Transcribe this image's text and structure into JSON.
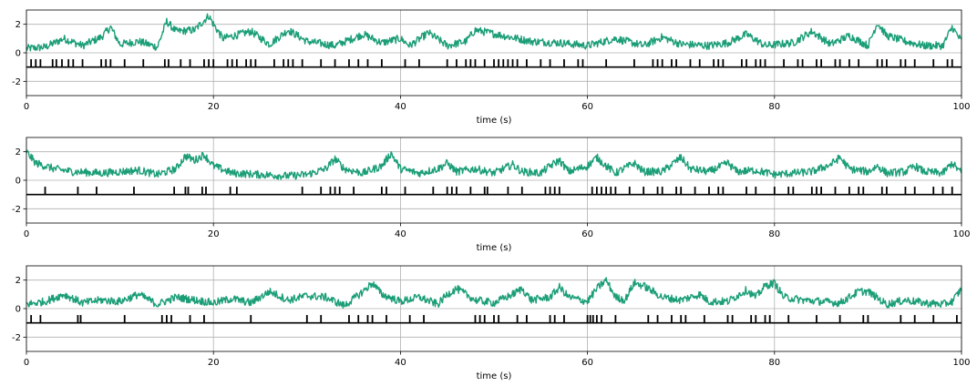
{
  "chart_data": [
    {
      "type": "line",
      "xlabel": "time (s)",
      "ylabel": "",
      "xlim": [
        0,
        100
      ],
      "ylim": [
        -3,
        3
      ],
      "xticks": [
        "0",
        "20",
        "40",
        "60",
        "80",
        "100"
      ],
      "yticks": [
        "-2",
        "0",
        "2"
      ],
      "grid": true,
      "trace_color": "#1b9e77",
      "spike_color": "#000000",
      "spike_baseline": -1,
      "trace_anchors": [
        [
          0,
          0.3
        ],
        [
          2,
          0.4
        ],
        [
          4,
          1.0
        ],
        [
          6,
          0.5
        ],
        [
          8,
          1.1
        ],
        [
          9,
          1.8
        ],
        [
          10,
          0.6
        ],
        [
          12,
          0.8
        ],
        [
          14,
          0.4
        ],
        [
          15,
          2.2
        ],
        [
          16,
          1.5
        ],
        [
          18,
          1.6
        ],
        [
          19.5,
          2.6
        ],
        [
          20,
          2.0
        ],
        [
          21,
          1.0
        ],
        [
          24,
          1.5
        ],
        [
          26,
          0.6
        ],
        [
          28,
          1.6
        ],
        [
          30,
          0.8
        ],
        [
          33,
          0.5
        ],
        [
          36,
          1.3
        ],
        [
          38,
          0.7
        ],
        [
          40,
          1.0
        ],
        [
          41,
          0.5
        ],
        [
          43,
          1.4
        ],
        [
          45,
          0.5
        ],
        [
          47,
          0.8
        ],
        [
          48,
          1.6
        ],
        [
          51,
          1.2
        ],
        [
          54,
          0.8
        ],
        [
          57,
          0.7
        ],
        [
          60,
          0.5
        ],
        [
          63,
          1.0
        ],
        [
          66,
          0.5
        ],
        [
          68,
          1.1
        ],
        [
          70,
          0.6
        ],
        [
          73,
          0.5
        ],
        [
          75,
          0.7
        ],
        [
          77,
          1.3
        ],
        [
          79,
          0.5
        ],
        [
          82,
          0.7
        ],
        [
          84,
          1.5
        ],
        [
          86,
          0.6
        ],
        [
          88,
          1.2
        ],
        [
          90,
          0.5
        ],
        [
          91,
          2.1
        ],
        [
          92,
          1.2
        ],
        [
          94,
          0.8
        ],
        [
          96,
          0.5
        ],
        [
          98,
          0.5
        ],
        [
          99,
          1.8
        ],
        [
          100,
          0.8
        ]
      ],
      "spike_times": [
        0.5,
        1,
        1.5,
        2.8,
        3.2,
        3.8,
        4.5,
        5,
        6,
        8,
        8.5,
        9,
        10.5,
        12.5,
        14.8,
        15.2,
        16.5,
        17.5,
        19,
        19.5,
        20,
        21.5,
        22,
        22.5,
        23.5,
        24,
        24.5,
        26.5,
        27.5,
        28,
        28.5,
        29.5,
        31.5,
        33,
        34.5,
        35.5,
        36.5,
        38,
        40.5,
        42,
        45,
        46,
        47,
        47.5,
        48,
        49,
        50,
        50.5,
        51,
        51.5,
        52,
        52.5,
        53.5,
        55,
        56,
        57.5,
        59,
        59.5,
        62,
        65,
        67,
        67.5,
        68,
        69,
        69.5,
        71,
        72,
        73.5,
        74,
        74.5,
        76.5,
        77,
        78,
        78.5,
        79,
        81,
        82.5,
        83,
        84.5,
        85,
        86.5,
        87,
        88,
        89,
        91,
        91.5,
        92,
        93.5,
        94,
        95,
        97,
        98.5,
        99
      ]
    },
    {
      "type": "line",
      "xlabel": "time (s)",
      "ylabel": "",
      "xlim": [
        0,
        100
      ],
      "ylim": [
        -3,
        3
      ],
      "xticks": [
        "0",
        "20",
        "40",
        "60",
        "80",
        "100"
      ],
      "yticks": [
        "-2",
        "0",
        "2"
      ],
      "grid": true,
      "trace_color": "#1b9e77",
      "spike_color": "#000000",
      "spike_baseline": -1,
      "trace_anchors": [
        [
          0,
          2.0
        ],
        [
          1,
          1.2
        ],
        [
          3,
          0.8
        ],
        [
          5,
          0.6
        ],
        [
          8,
          0.5
        ],
        [
          10,
          0.6
        ],
        [
          12,
          0.7
        ],
        [
          14,
          0.4
        ],
        [
          16,
          0.8
        ],
        [
          17,
          1.7
        ],
        [
          18,
          1.4
        ],
        [
          19,
          1.8
        ],
        [
          20,
          1.0
        ],
        [
          22,
          0.5
        ],
        [
          25,
          0.4
        ],
        [
          28,
          0.3
        ],
        [
          30,
          0.4
        ],
        [
          32,
          0.8
        ],
        [
          33,
          1.5
        ],
        [
          34,
          0.8
        ],
        [
          36,
          0.5
        ],
        [
          38,
          1.0
        ],
        [
          39,
          1.9
        ],
        [
          40,
          0.8
        ],
        [
          42,
          0.5
        ],
        [
          44,
          0.8
        ],
        [
          45,
          1.2
        ],
        [
          46,
          0.6
        ],
        [
          48,
          0.8
        ],
        [
          50,
          0.5
        ],
        [
          52,
          1.1
        ],
        [
          53,
          0.6
        ],
        [
          55,
          0.5
        ],
        [
          56,
          1.0
        ],
        [
          57,
          1.4
        ],
        [
          58,
          0.6
        ],
        [
          60,
          1.0
        ],
        [
          61,
          1.6
        ],
        [
          62,
          1.0
        ],
        [
          63,
          0.5
        ],
        [
          65,
          1.2
        ],
        [
          66,
          0.6
        ],
        [
          68,
          0.6
        ],
        [
          69,
          1.1
        ],
        [
          70,
          1.6
        ],
        [
          71,
          0.8
        ],
        [
          73,
          0.6
        ],
        [
          75,
          1.2
        ],
        [
          76,
          0.6
        ],
        [
          78,
          0.7
        ],
        [
          80,
          0.4
        ],
        [
          82,
          0.5
        ],
        [
          84,
          0.6
        ],
        [
          86,
          1.1
        ],
        [
          87,
          1.6
        ],
        [
          88,
          0.8
        ],
        [
          90,
          0.6
        ],
        [
          91,
          1.0
        ],
        [
          92,
          0.5
        ],
        [
          94,
          0.6
        ],
        [
          95,
          1.0
        ],
        [
          96,
          0.6
        ],
        [
          98,
          0.5
        ],
        [
          99,
          1.2
        ],
        [
          100,
          0.5
        ]
      ],
      "spike_times": [
        2,
        5.5,
        7.5,
        11.5,
        15.8,
        17,
        17.3,
        18.8,
        19.2,
        21.8,
        22.5,
        29.5,
        31.5,
        32.5,
        33,
        33.5,
        35,
        38,
        38.5,
        40.5,
        43.5,
        45,
        45.5,
        46,
        47.5,
        49,
        49.3,
        51.5,
        53,
        55.5,
        56,
        56.5,
        57,
        60.5,
        61,
        61.5,
        62,
        62.5,
        63,
        64.5,
        66,
        67.5,
        68,
        69.5,
        70,
        71.5,
        73,
        74,
        74.5,
        77,
        78,
        80,
        81.5,
        82,
        84,
        84.5,
        85,
        86.5,
        88,
        89,
        89.5,
        91.5,
        92,
        94,
        95,
        97,
        98,
        99
      ]
    },
    {
      "type": "line",
      "xlabel": "time (s)",
      "ylabel": "",
      "xlim": [
        0,
        100
      ],
      "ylim": [
        -3,
        3
      ],
      "xticks": [
        "0",
        "20",
        "40",
        "60",
        "80",
        "100"
      ],
      "yticks": [
        "-2",
        "0",
        "2"
      ],
      "grid": true,
      "trace_color": "#1b9e77",
      "spike_color": "#000000",
      "spike_baseline": -1,
      "trace_anchors": [
        [
          0,
          0.3
        ],
        [
          2,
          0.5
        ],
        [
          4,
          1.0
        ],
        [
          6,
          0.4
        ],
        [
          8,
          0.6
        ],
        [
          10,
          0.5
        ],
        [
          12,
          1.0
        ],
        [
          14,
          0.3
        ],
        [
          16,
          0.8
        ],
        [
          18,
          0.6
        ],
        [
          20,
          0.4
        ],
        [
          22,
          0.7
        ],
        [
          24,
          0.4
        ],
        [
          25,
          0.8
        ],
        [
          26,
          1.2
        ],
        [
          28,
          0.6
        ],
        [
          30,
          0.9
        ],
        [
          32,
          0.8
        ],
        [
          34,
          0.2
        ],
        [
          36,
          1.2
        ],
        [
          37,
          1.8
        ],
        [
          38,
          1.0
        ],
        [
          40,
          0.5
        ],
        [
          42,
          0.8
        ],
        [
          44,
          0.3
        ],
        [
          45,
          1.0
        ],
        [
          46,
          1.4
        ],
        [
          48,
          0.6
        ],
        [
          50,
          0.4
        ],
        [
          52,
          1.0
        ],
        [
          53,
          1.4
        ],
        [
          54,
          0.6
        ],
        [
          56,
          0.8
        ],
        [
          57,
          1.5
        ],
        [
          58,
          0.8
        ],
        [
          60,
          0.5
        ],
        [
          61,
          1.4
        ],
        [
          62,
          2.0
        ],
        [
          63,
          0.8
        ],
        [
          64,
          0.6
        ],
        [
          65,
          1.8
        ],
        [
          66,
          1.6
        ],
        [
          68,
          0.8
        ],
        [
          70,
          0.6
        ],
        [
          72,
          1.0
        ],
        [
          73,
          0.5
        ],
        [
          75,
          0.5
        ],
        [
          77,
          1.3
        ],
        [
          78,
          0.8
        ],
        [
          79,
          1.6
        ],
        [
          80,
          1.8
        ],
        [
          81,
          0.8
        ],
        [
          83,
          0.6
        ],
        [
          85,
          0.5
        ],
        [
          87,
          0.4
        ],
        [
          89,
          1.2
        ],
        [
          90,
          1.2
        ],
        [
          92,
          0.3
        ],
        [
          94,
          0.6
        ],
        [
          96,
          0.4
        ],
        [
          98,
          0.3
        ],
        [
          99,
          0.5
        ],
        [
          100,
          1.4
        ]
      ],
      "spike_times": [
        0.5,
        1.5,
        5.5,
        5.8,
        10.5,
        14.5,
        15,
        15.5,
        17.5,
        19,
        24,
        30,
        31.5,
        34.5,
        35.5,
        36.5,
        37,
        38.5,
        41,
        42.5,
        48,
        48.5,
        49,
        50,
        50.5,
        52.5,
        53.5,
        56,
        56.5,
        57.5,
        60,
        60.3,
        60.6,
        61,
        61.5,
        63,
        66.5,
        67.5,
        69,
        70,
        70.5,
        72.5,
        75,
        75.5,
        77.5,
        78,
        79,
        79.5,
        81.5,
        84.5,
        87,
        89.5,
        90,
        93.5,
        95,
        97,
        99.5
      ]
    }
  ]
}
